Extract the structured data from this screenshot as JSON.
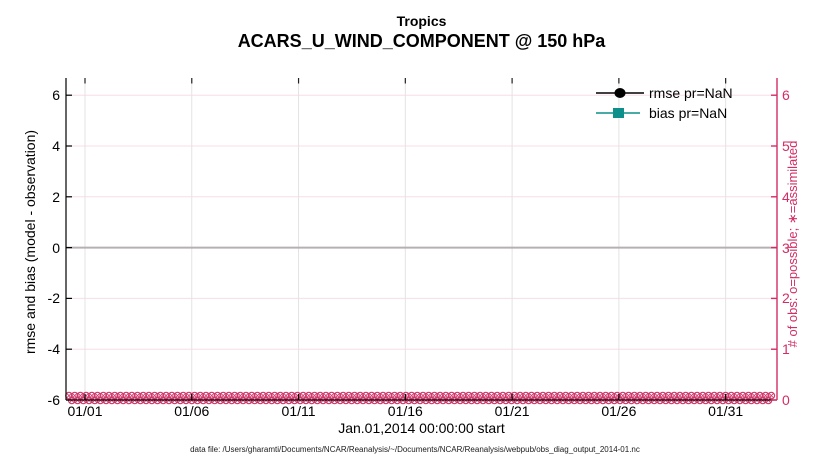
{
  "title": {
    "region": "Tropics",
    "variable": "ACARS_U_WIND_COMPONENT @ 150 hPa"
  },
  "legend": {
    "items": [
      {
        "label": "rmse pr=NaN",
        "color": "#000000",
        "marker": "circle"
      },
      {
        "label": "bias pr=NaN",
        "color": "#0d8f8c",
        "marker": "square"
      }
    ]
  },
  "axes": {
    "left": {
      "label": "rmse and bias (model - observation)",
      "ticks": [
        6,
        4,
        2,
        0,
        -2,
        -4,
        -6
      ],
      "color": "#000000"
    },
    "right": {
      "label": "# of obs: o=possible; ∗=assimilated",
      "ticks": [
        6,
        5,
        4,
        3,
        2,
        1,
        0
      ],
      "color": "#d22d66"
    },
    "x": {
      "label": "Jan.01,2014 00:00:00 start",
      "ticks": [
        "01/01",
        "01/06",
        "01/11",
        "01/16",
        "01/21",
        "01/26",
        "01/31"
      ],
      "tick_days": [
        1,
        6,
        11,
        16,
        21,
        26,
        31
      ]
    }
  },
  "footer": {
    "datafile": "data file: /Users/gharamti/Documents/NCAR/Reanalysis/~/Documents/NCAR/Reanalysis/webpub/obs_diag_output_2014-01.nc"
  },
  "colors": {
    "accent_pink": "#d22d66",
    "marker_pink": "#d13a6c",
    "teal": "#0d8f8c",
    "zero_line_gray": "#b8b0b0",
    "grid_vertical": "#e3e3e3",
    "grid_horizontal": "#f8dde8"
  },
  "chart_data": {
    "type": "line",
    "title": "Tropics — ACARS_U_WIND_COMPONENT @ 150 hPa",
    "x": {
      "start": "Jan.01,2014 00:00:00",
      "end": "Jan.31,2014",
      "tick_labels": [
        "01/01",
        "01/06",
        "01/11",
        "01/16",
        "01/21",
        "01/26",
        "01/31"
      ]
    },
    "left_axis": {
      "label": "rmse and bias (model - observation)",
      "ylim": [
        -6,
        6.7
      ],
      "tick_step": 2
    },
    "right_axis": {
      "label": "# of obs: o=possible; ∗=assimilated",
      "ylim": [
        0,
        6.35
      ],
      "tick_step": 1
    },
    "series": [
      {
        "name": "rmse pr=NaN",
        "axis": "left",
        "marker": "circle",
        "color": "#000000",
        "values": "NaN"
      },
      {
        "name": "bias pr=NaN",
        "axis": "left",
        "marker": "square",
        "color": "#0d8f8c",
        "values": "NaN"
      }
    ],
    "obs_counts": {
      "axis": "right",
      "n_times": 124,
      "possible_per_time": 0,
      "assimilated_per_time": 0,
      "note": "o (possible) and * (assimilated) markers all plotted at 0 along the bottom axis"
    },
    "zero_reference_line": 0,
    "grid": true,
    "legend_position": "top-right-inside"
  }
}
